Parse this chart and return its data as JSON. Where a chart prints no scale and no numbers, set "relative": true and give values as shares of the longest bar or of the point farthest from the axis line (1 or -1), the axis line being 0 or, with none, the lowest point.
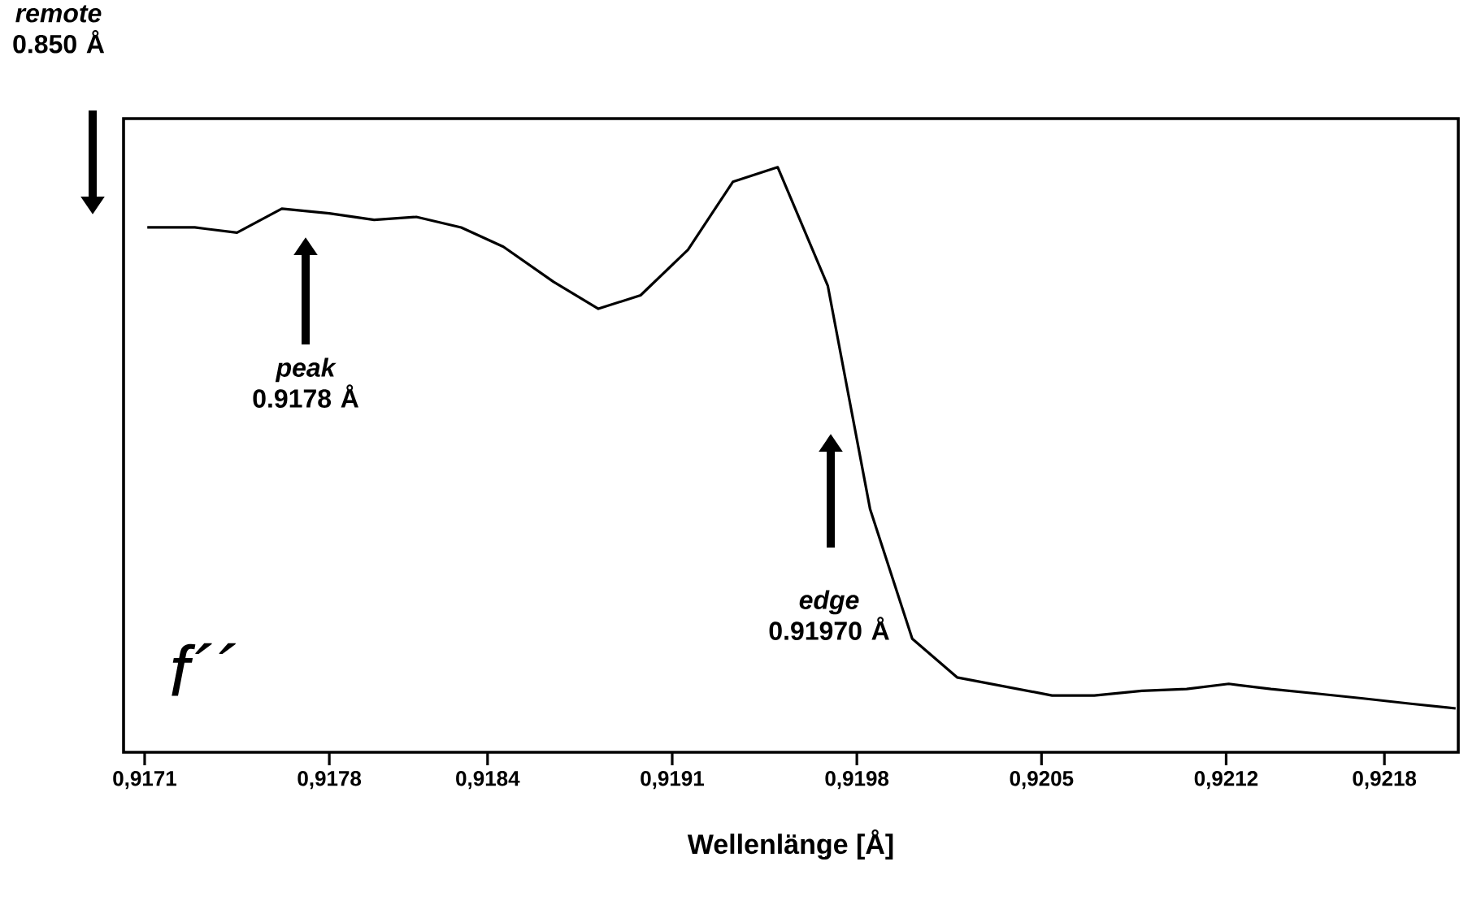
{
  "chart_data": {
    "type": "line",
    "relative": true,
    "xlabel": "Wellenlänge [Å]",
    "xlim": [
      0.91702,
      0.92208
    ],
    "xticks": [
      {
        "value": 0.9171,
        "label": "0,9171"
      },
      {
        "value": 0.9178,
        "label": "0,9178"
      },
      {
        "value": 0.9184,
        "label": "0,9184"
      },
      {
        "value": 0.9191,
        "label": "0,9191"
      },
      {
        "value": 0.9198,
        "label": "0,9198"
      },
      {
        "value": 0.9205,
        "label": "0,9205"
      },
      {
        "value": 0.9212,
        "label": "0,9212"
      },
      {
        "value": 0.9218,
        "label": "0,9218"
      }
    ],
    "series": [
      {
        "color": "#000000",
        "x": [
          0.91711,
          0.91729,
          0.91745,
          0.91762,
          0.9178,
          0.91797,
          0.91813,
          0.9183,
          0.91846,
          0.91865,
          0.91882,
          0.91898,
          0.91916,
          0.91933,
          0.9195,
          0.91969,
          0.91985,
          0.92001,
          0.92018,
          0.92054,
          0.9207,
          0.92088,
          0.92105,
          0.92121,
          0.92137,
          0.92155,
          0.92172,
          0.9219,
          0.92207
        ],
        "values": [
          0.897,
          0.897,
          0.888,
          0.929,
          0.921,
          0.91,
          0.915,
          0.897,
          0.864,
          0.804,
          0.758,
          0.781,
          0.859,
          0.975,
          1.0,
          0.797,
          0.416,
          0.194,
          0.128,
          0.097,
          0.097,
          0.105,
          0.108,
          0.117,
          0.108,
          0.1,
          0.092,
          0.083,
          0.075
        ]
      }
    ],
    "annotations": [
      "*remote* 0.850 Å",
      "*peak* 0.9178 Å",
      "*edge* 0.91970 Å",
      "f´´"
    ]
  }
}
